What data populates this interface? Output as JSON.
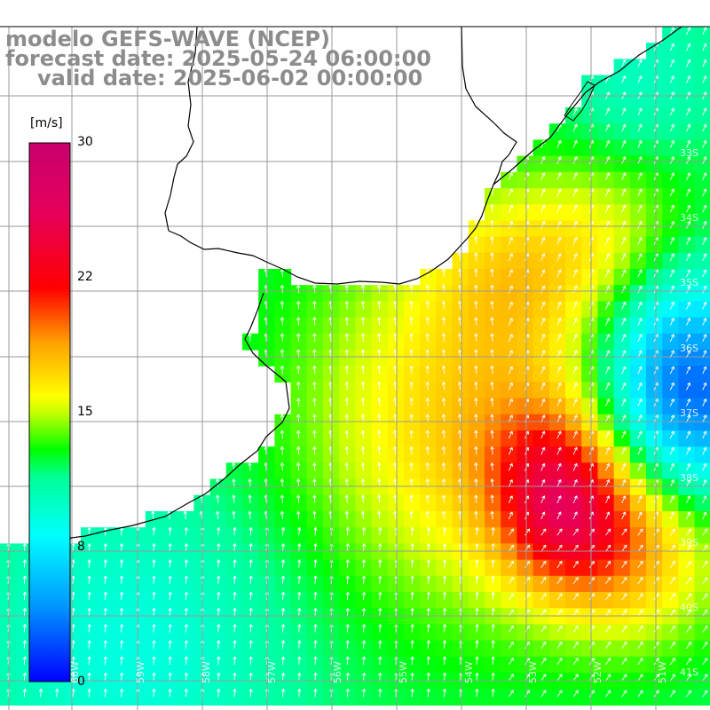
{
  "title": {
    "line1": "modelo GEFS-WAVE (NCEP)",
    "line2": "forecast date: 2025-05-24 06:00:00",
    "line3": "valid date: 2025-06-02 00:00:00"
  },
  "colorbar": {
    "unit": "[m/s]",
    "ticks": [
      {
        "label": "30",
        "value": 30
      },
      {
        "label": "22",
        "value": 22
      },
      {
        "label": "15",
        "value": 15
      },
      {
        "label": "8",
        "value": 8
      },
      {
        "label": "0",
        "value": 0
      }
    ],
    "min": 0,
    "max": 30
  },
  "axes": {
    "lat_labels": [
      "33S",
      "34S",
      "35S",
      "36S",
      "37S",
      "38S",
      "39S",
      "40S",
      "41S"
    ],
    "lon_labels": [
      "60W",
      "59W",
      "58W",
      "57W",
      "56W",
      "55W",
      "54W",
      "53W",
      "52W",
      "51W"
    ]
  },
  "colors": {
    "title_gray": "#8c8c8c",
    "grid": "#9a9a9a",
    "coast": "#000000",
    "arrows": "#ffffff",
    "land": "#ffffff"
  }
}
